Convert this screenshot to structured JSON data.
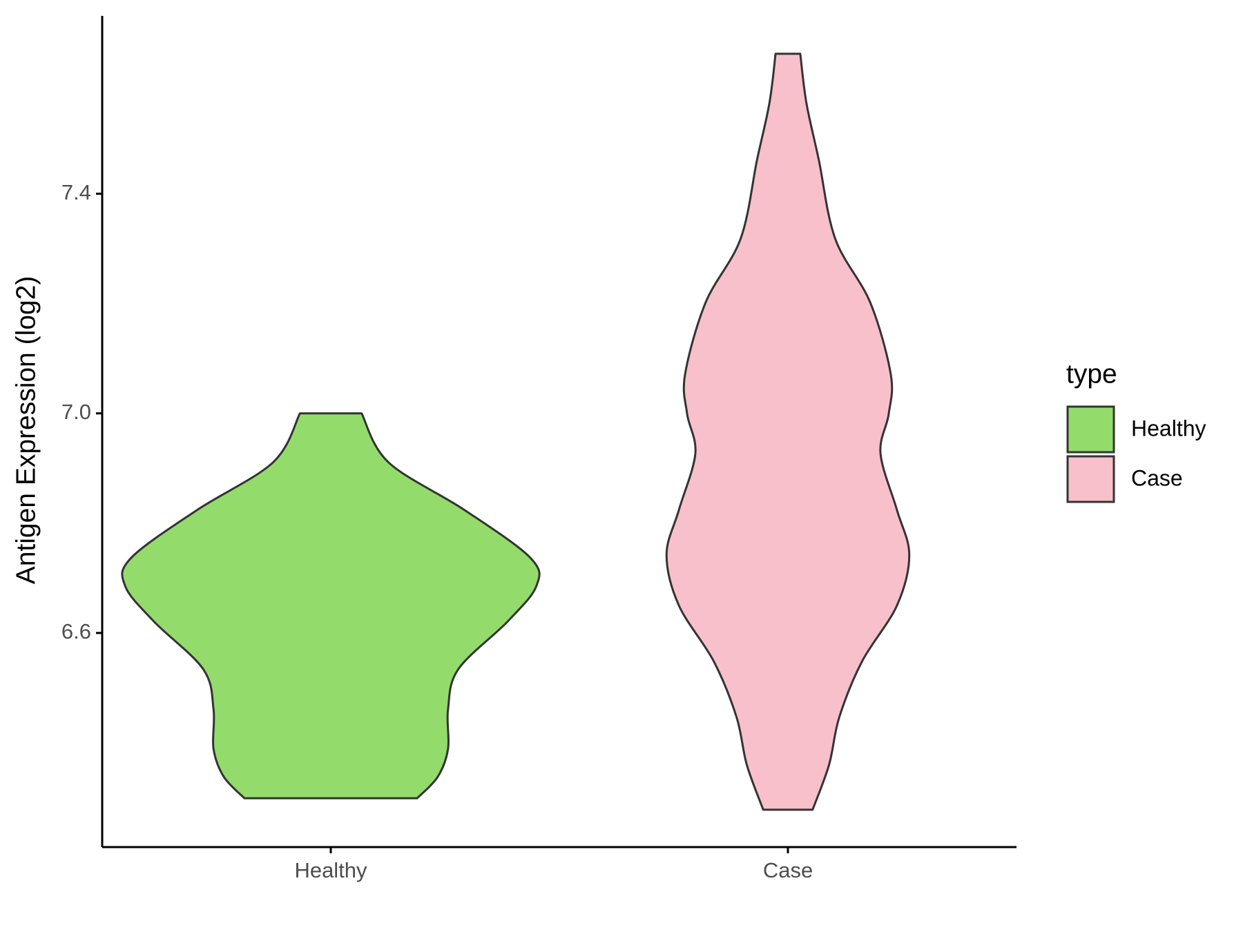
{
  "chart_data": {
    "type": "violin",
    "y_label": "Antigen Expression (log2)",
    "categories": [
      "Healthy",
      "Case"
    ],
    "legend_title": "type",
    "legend_position": "right",
    "series": [
      {
        "name": "Healthy",
        "color": "#93dc6b",
        "y": [
          7.0,
          6.911,
          6.824,
          6.737,
          6.686,
          6.621,
          6.534,
          6.461,
          6.389,
          6.338,
          6.299
        ],
        "width": [
          0.15,
          0.28,
          0.65,
          0.97,
          1.0,
          0.86,
          0.62,
          0.57,
          0.57,
          0.52,
          0.42
        ]
      },
      {
        "name": "Case",
        "color": "#f7c0cb",
        "y": [
          7.655,
          7.565,
          7.462,
          7.318,
          7.202,
          7.071,
          6.999,
          6.927,
          6.824,
          6.742,
          6.65,
          6.548,
          6.447,
          6.36,
          6.278
        ],
        "width": [
          0.06,
          0.09,
          0.15,
          0.23,
          0.4,
          0.5,
          0.49,
          0.45,
          0.53,
          0.59,
          0.53,
          0.36,
          0.25,
          0.2,
          0.12
        ]
      }
    ],
    "ylim": [
      6.21,
      7.724
    ],
    "yticks": [
      6.6,
      {
        "value": 7.0,
        "label": "7.0"
      },
      7.4
    ],
    "grid": false
  }
}
